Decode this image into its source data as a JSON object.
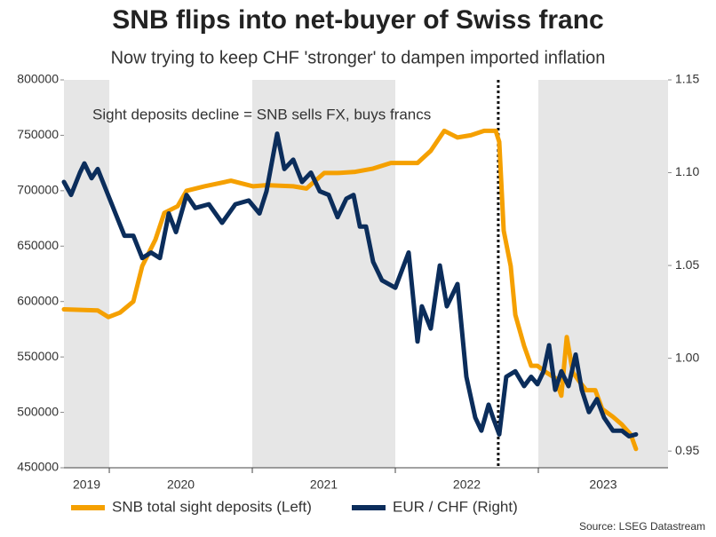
{
  "chart_data": {
    "type": "line",
    "title": "SNB flips into net-buyer of Swiss franc",
    "subtitle": "Now trying to keep CHF 'stronger' to dampen imported inflation",
    "annotation": "Sight deposits decline = SNB sells FX, buys francs",
    "source": "Source: LSEG Datastream",
    "xlim": [
      2019.683,
      2023.907
    ],
    "xticks": [
      2019,
      2020,
      2021,
      2022,
      2023
    ],
    "ylim": [
      450000,
      800000
    ],
    "yticks": [
      450000,
      500000,
      550000,
      600000,
      650000,
      700000,
      750000,
      800000
    ],
    "y2lim": [
      0.941,
      1.15
    ],
    "y2ticks": [
      0.95,
      {
        "value": 1,
        "label": "1.00"
      },
      1.05,
      {
        "value": 1.1,
        "label": "1.10"
      },
      1.15
    ],
    "vline": 2022.72,
    "series": [
      {
        "name": "SNB total sight deposits (Left)",
        "color": "#f5a000",
        "axis": "y",
        "x": [
          2019.683,
          2019.919,
          2019.994,
          2020.075,
          2020.168,
          2020.23,
          2020.323,
          2020.385,
          2020.478,
          2020.54,
          2020.665,
          2020.851,
          2021.006,
          2021.099,
          2021.286,
          2021.379,
          2021.503,
          2021.596,
          2021.72,
          2021.845,
          2021.969,
          2022.155,
          2022.248,
          2022.342,
          2022.435,
          2022.528,
          2022.621,
          2022.702,
          2022.727,
          2022.758,
          2022.807,
          2022.839,
          2022.901,
          2022.95,
          2022.994,
          2023.056,
          2023.118,
          2023.161,
          2023.199,
          2023.242,
          2023.286,
          2023.335,
          2023.398,
          2023.447,
          2023.522,
          2023.584,
          2023.646,
          2023.683
        ],
        "values": [
          593000,
          592000,
          586000,
          590000,
          600000,
          632000,
          656000,
          680000,
          686000,
          700000,
          704000,
          709000,
          704000,
          705000,
          704000,
          702000,
          716000,
          716000,
          717000,
          720000,
          725000,
          725000,
          736000,
          754000,
          748000,
          750000,
          754000,
          754000,
          744000,
          664000,
          632000,
          588000,
          560000,
          542000,
          542000,
          536000,
          531000,
          515000,
          568000,
          536000,
          528000,
          520000,
          520000,
          503000,
          496000,
          489000,
          480000,
          467000
        ]
      },
      {
        "name": "EUR / CHF (Right)",
        "color": "#0b2d5b",
        "axis": "y2",
        "x": [
          2019.683,
          2019.733,
          2019.795,
          2019.826,
          2019.876,
          2019.919,
          2019.981,
          2020.043,
          2020.106,
          2020.168,
          2020.23,
          2020.292,
          2020.354,
          2020.416,
          2020.466,
          2020.54,
          2020.602,
          2020.696,
          2020.789,
          2020.882,
          2020.975,
          2021.05,
          2021.099,
          2021.174,
          2021.224,
          2021.286,
          2021.348,
          2021.41,
          2021.472,
          2021.534,
          2021.596,
          2021.658,
          2021.708,
          2021.752,
          2021.795,
          2021.845,
          2021.907,
          2022.0,
          2022.093,
          2022.155,
          2022.186,
          2022.248,
          2022.311,
          2022.36,
          2022.435,
          2022.497,
          2022.559,
          2022.602,
          2022.652,
          2022.683,
          2022.727,
          2022.776,
          2022.839,
          2022.901,
          2022.95,
          2022.994,
          2023.037,
          2023.075,
          2023.118,
          2023.161,
          2023.211,
          2023.261,
          2023.304,
          2023.354,
          2023.41,
          2023.46,
          2023.522,
          2023.584,
          2023.634,
          2023.683
        ],
        "values": [
          1.095,
          1.088,
          1.1,
          1.105,
          1.097,
          1.102,
          1.09,
          1.078,
          1.066,
          1.066,
          1.054,
          1.057,
          1.054,
          1.078,
          1.068,
          1.088,
          1.081,
          1.083,
          1.073,
          1.083,
          1.085,
          1.078,
          1.09,
          1.121,
          1.102,
          1.107,
          1.095,
          1.1,
          1.09,
          1.088,
          1.076,
          1.086,
          1.088,
          1.071,
          1.071,
          1.052,
          1.042,
          1.038,
          1.057,
          1.009,
          1.028,
          1.016,
          1.05,
          1.028,
          1.04,
          0.99,
          0.968,
          0.961,
          0.975,
          0.968,
          0.959,
          0.99,
          0.993,
          0.985,
          0.99,
          0.986,
          0.993,
          1.007,
          0.983,
          0.993,
          0.985,
          1.002,
          0.983,
          0.971,
          0.978,
          0.968,
          0.961,
          0.961,
          0.958,
          0.959
        ]
      }
    ]
  }
}
